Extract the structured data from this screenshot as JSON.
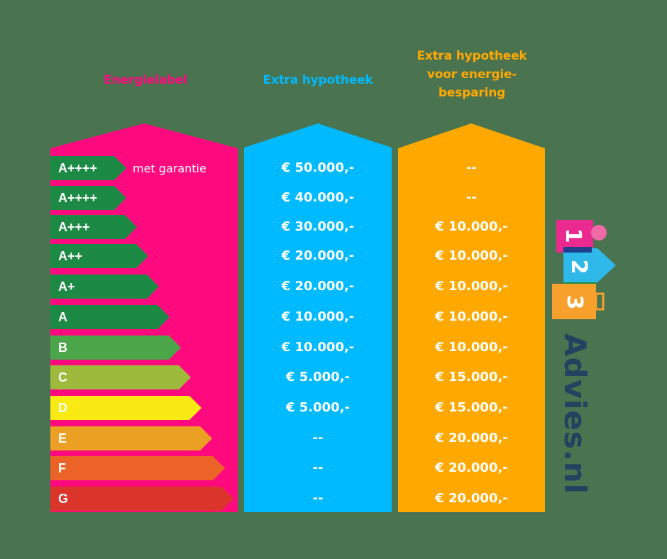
{
  "headings": {
    "energielabel": "Energielabel",
    "extra_hypotheek": "Extra hypotheek",
    "extra_energie_line1": "Extra hypotheek",
    "extra_energie_line2": "voor energie-",
    "extra_energie_line3": "besparing"
  },
  "colors": {
    "background": "#4a7350",
    "pink": "#ff0a7e",
    "blue": "#00baff",
    "orange": "#ffa800",
    "logo_text": "#22435f"
  },
  "note": "met garantie",
  "rows": [
    {
      "label": "A++++",
      "color": "#1c8a45",
      "extra": "€ 50.000,-",
      "energie": "--"
    },
    {
      "label": "A++++",
      "color": "#1c8a45",
      "extra": "€ 40.000,-",
      "energie": "--"
    },
    {
      "label": "A+++",
      "color": "#1c8a45",
      "extra": "€ 30.000,-",
      "energie": "€ 10.000,-"
    },
    {
      "label": "A++",
      "color": "#1c8a45",
      "extra": "€ 20.000,-",
      "energie": "€ 10.000,-"
    },
    {
      "label": "A+",
      "color": "#1c8a45",
      "extra": "€ 20.000,-",
      "energie": "€ 10.000,-"
    },
    {
      "label": "A",
      "color": "#1c8a45",
      "extra": "€ 10.000,-",
      "energie": "€ 10.000,-"
    },
    {
      "label": "B",
      "color": "#4aa648",
      "extra": "€ 10.000,-",
      "energie": "€ 10.000,-"
    },
    {
      "label": "C",
      "color": "#9dba3c",
      "extra": "€ 5.000,-",
      "energie": "€ 15.000,-"
    },
    {
      "label": "D",
      "color": "#f8ea12",
      "extra": "€ 5.000,-",
      "energie": "€ 15.000,-"
    },
    {
      "label": "E",
      "color": "#eba024",
      "extra": "--",
      "energie": "€ 20.000,-"
    },
    {
      "label": "F",
      "color": "#ec6327",
      "extra": "--",
      "energie": "€ 20.000,-"
    },
    {
      "label": "G",
      "color": "#db342b",
      "extra": "--",
      "energie": "€ 20.000,-"
    }
  ],
  "logo": {
    "digits": [
      "1",
      "2",
      "3"
    ],
    "text": "Advies.nl"
  }
}
